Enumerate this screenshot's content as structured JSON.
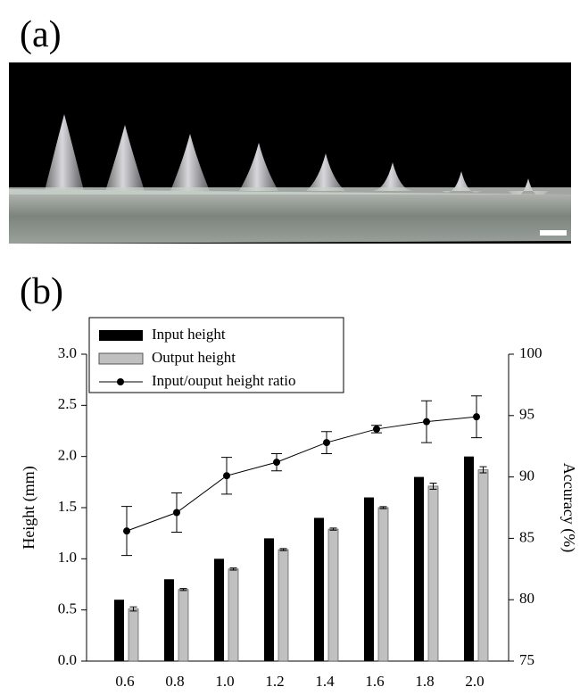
{
  "panel_a": {
    "label": "(a)"
  },
  "chart_data": {
    "type": "bar",
    "panel_label": "(b)",
    "categories": [
      "0.6",
      "0.8",
      "1.0",
      "1.2",
      "1.4",
      "1.6",
      "1.8",
      "2.0"
    ],
    "series": [
      {
        "name": "Input height",
        "type": "bar",
        "color": "#000000",
        "values": [
          0.6,
          0.8,
          1.0,
          1.2,
          1.4,
          1.6,
          1.8,
          2.0
        ]
      },
      {
        "name": "Output height",
        "type": "bar",
        "color": "#c0c0c0",
        "values": [
          0.51,
          0.7,
          0.9,
          1.09,
          1.29,
          1.5,
          1.71,
          1.87
        ],
        "errors": [
          0.02,
          0.01,
          0.01,
          0.01,
          0.01,
          0.01,
          0.03,
          0.03
        ]
      },
      {
        "name": "Input/ouput height ratio",
        "type": "line",
        "axis": "y2",
        "color": "#000000",
        "values": [
          85.6,
          87.1,
          90.1,
          91.2,
          92.8,
          93.9,
          94.5,
          94.9
        ],
        "errors": [
          2.0,
          1.6,
          1.5,
          0.7,
          0.9,
          0.3,
          1.7,
          1.7
        ]
      }
    ],
    "ylabel": "Height (mm)",
    "y2label": "Accuracy (%)",
    "ylim": [
      0,
      3
    ],
    "yticks": [
      {
        "value": 0,
        "label": "0.0"
      },
      0.5,
      {
        "value": 1,
        "label": "1.0"
      },
      1.5,
      {
        "value": 2,
        "label": "2.0"
      },
      2.5,
      {
        "value": 3,
        "label": "3.0"
      }
    ],
    "y2lim": [
      75,
      100
    ],
    "y2ticks": [
      75,
      80,
      85,
      90,
      95,
      100
    ],
    "grid": false,
    "legend": "top-left"
  }
}
